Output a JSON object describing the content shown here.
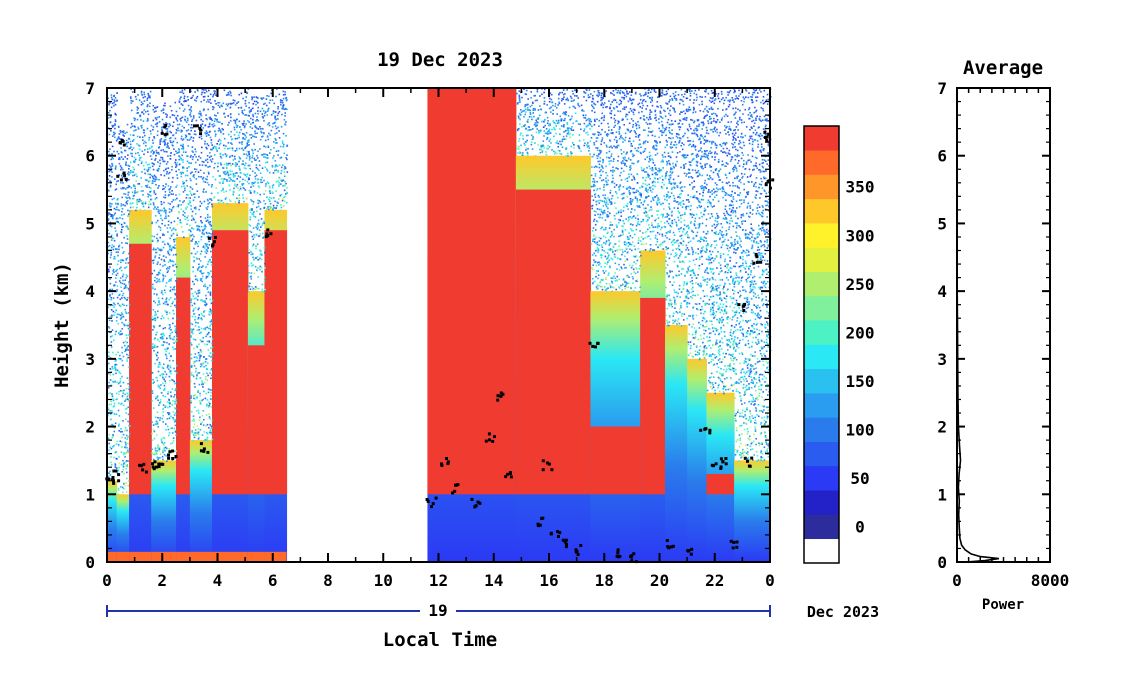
{
  "chart_data": [
    {
      "type": "heatmap",
      "title": "19 Dec 2023",
      "xlabel": "Local Time",
      "ylabel": "Height (km)",
      "date_day": "19",
      "date_month": "Dec 2023",
      "xlim": [
        0,
        24
      ],
      "ylim": [
        0,
        7
      ],
      "x_ticks": [
        "0",
        "2",
        "4",
        "6",
        "8",
        "10",
        "12",
        "14",
        "16",
        "18",
        "20",
        "22",
        "0"
      ],
      "y_ticks": [
        "0",
        "1",
        "2",
        "3",
        "4",
        "5",
        "6",
        "7"
      ],
      "data_gap_hours": [
        6.5,
        11.6
      ],
      "colorbar": {
        "ticks": [
          "0",
          "50",
          "100",
          "150",
          "200",
          "250",
          "300",
          "350"
        ],
        "levels": [
          0,
          25,
          50,
          75,
          100,
          125,
          150,
          175,
          200,
          225,
          250,
          275,
          300,
          325,
          350,
          375
        ],
        "colors": [
          "#ffffff",
          "#2c2c9c",
          "#2222c8",
          "#2b3af4",
          "#2a5cf0",
          "#2a7cec",
          "#2a9df0",
          "#2ac0f0",
          "#2ae8f4",
          "#4cf2c4",
          "#80f09c",
          "#b0ee70",
          "#e4f040",
          "#fff22a",
          "#ffc82a",
          "#ff962a",
          "#ff6a2a",
          "#f03c30"
        ]
      },
      "columns": [
        {
          "start": 0.0,
          "end": 0.35,
          "red_top": 0.0,
          "grad_top": 1.2,
          "speck_top": 7.0
        },
        {
          "start": 0.35,
          "end": 0.8,
          "red_top": 0.0,
          "grad_top": 1.0,
          "speck_top": 6.5
        },
        {
          "start": 0.8,
          "end": 1.6,
          "red_top": 4.7,
          "grad_top": 5.2,
          "speck_top": 7.0
        },
        {
          "start": 1.6,
          "end": 2.5,
          "red_top": 0.0,
          "grad_top": 1.5,
          "speck_top": 6.8
        },
        {
          "start": 2.5,
          "end": 3.0,
          "red_top": 4.2,
          "grad_top": 4.8,
          "speck_top": 7.0
        },
        {
          "start": 3.0,
          "end": 3.8,
          "red_top": 0.0,
          "grad_top": 1.8,
          "speck_top": 7.0
        },
        {
          "start": 3.8,
          "end": 5.1,
          "red_top": 4.9,
          "grad_top": 5.3,
          "speck_top": 7.0
        },
        {
          "start": 5.1,
          "end": 5.7,
          "red_top": 3.2,
          "grad_top": 4.0,
          "speck_top": 6.9
        },
        {
          "start": 5.7,
          "end": 6.5,
          "red_top": 4.9,
          "grad_top": 5.2,
          "speck_top": 7.0
        },
        {
          "start": 11.6,
          "end": 14.8,
          "red_top": 7.0,
          "grad_top": 7.0,
          "speck_top": 7.0
        },
        {
          "start": 14.8,
          "end": 17.5,
          "red_top": 5.5,
          "grad_top": 6.0,
          "speck_top": 7.0
        },
        {
          "start": 17.5,
          "end": 19.3,
          "red_top": 2.0,
          "grad_top": 4.0,
          "speck_top": 7.0
        },
        {
          "start": 19.3,
          "end": 20.2,
          "red_top": 3.9,
          "grad_top": 4.6,
          "speck_top": 7.0
        },
        {
          "start": 20.2,
          "end": 21.0,
          "red_top": 0.5,
          "grad_top": 3.5,
          "speck_top": 7.0
        },
        {
          "start": 21.0,
          "end": 21.7,
          "red_top": 0.6,
          "grad_top": 3.0,
          "speck_top": 7.0
        },
        {
          "start": 21.7,
          "end": 22.7,
          "red_top": 1.3,
          "grad_top": 2.5,
          "speck_top": 7.0
        },
        {
          "start": 22.7,
          "end": 24.0,
          "red_top": 0.0,
          "grad_top": 1.5,
          "speck_top": 7.0
        }
      ],
      "cloud_points": [
        [
          0.1,
          1.3
        ],
        [
          0.3,
          1.25
        ],
        [
          0.5,
          6.2
        ],
        [
          0.5,
          5.7
        ],
        [
          1.3,
          1.4
        ],
        [
          1.7,
          1.45
        ],
        [
          2.0,
          1.5
        ],
        [
          2.3,
          1.6
        ],
        [
          2.0,
          6.4
        ],
        [
          3.2,
          6.4
        ],
        [
          3.5,
          1.7
        ],
        [
          3.7,
          4.75
        ],
        [
          5.7,
          4.9
        ],
        [
          11.7,
          0.9
        ],
        [
          12.2,
          1.5
        ],
        [
          12.6,
          1.1
        ],
        [
          13.3,
          0.9
        ],
        [
          13.8,
          1.85
        ],
        [
          14.2,
          2.45
        ],
        [
          14.5,
          1.3
        ],
        [
          15.6,
          0.6
        ],
        [
          15.9,
          1.45
        ],
        [
          16.2,
          0.4
        ],
        [
          16.5,
          0.3
        ],
        [
          17.0,
          0.2
        ],
        [
          17.6,
          3.2
        ],
        [
          18.4,
          0.15
        ],
        [
          19.0,
          0.1
        ],
        [
          20.3,
          0.3
        ],
        [
          21.1,
          0.2
        ],
        [
          21.6,
          2.0
        ],
        [
          22.0,
          1.4
        ],
        [
          22.3,
          1.5
        ],
        [
          22.6,
          0.3
        ],
        [
          22.9,
          3.8
        ],
        [
          23.2,
          1.5
        ],
        [
          23.5,
          4.5
        ],
        [
          23.8,
          6.3
        ],
        [
          23.9,
          5.6
        ]
      ]
    },
    {
      "type": "line",
      "title": "Average",
      "xlabel": "Power",
      "xlim": [
        0,
        8000
      ],
      "ylim": [
        0,
        7
      ],
      "x_ticks": [
        "0",
        "8000"
      ],
      "y_ticks": [
        "0",
        "1",
        "2",
        "3",
        "4",
        "5",
        "6",
        "7"
      ],
      "points": [
        [
          800,
          0.0
        ],
        [
          2400,
          0.02
        ],
        [
          3600,
          0.05
        ],
        [
          2000,
          0.08
        ],
        [
          1200,
          0.12
        ],
        [
          700,
          0.18
        ],
        [
          400,
          0.25
        ],
        [
          250,
          0.35
        ],
        [
          200,
          0.5
        ],
        [
          150,
          0.7
        ],
        [
          200,
          0.9
        ],
        [
          120,
          1.1
        ],
        [
          180,
          1.3
        ],
        [
          300,
          1.5
        ],
        [
          220,
          1.7
        ],
        [
          120,
          2.0
        ],
        [
          80,
          2.5
        ],
        [
          60,
          3.0
        ],
        [
          40,
          3.5
        ],
        [
          15,
          4.0
        ],
        [
          10,
          5.0
        ],
        [
          5,
          6.0
        ],
        [
          0,
          7.0
        ]
      ]
    }
  ]
}
